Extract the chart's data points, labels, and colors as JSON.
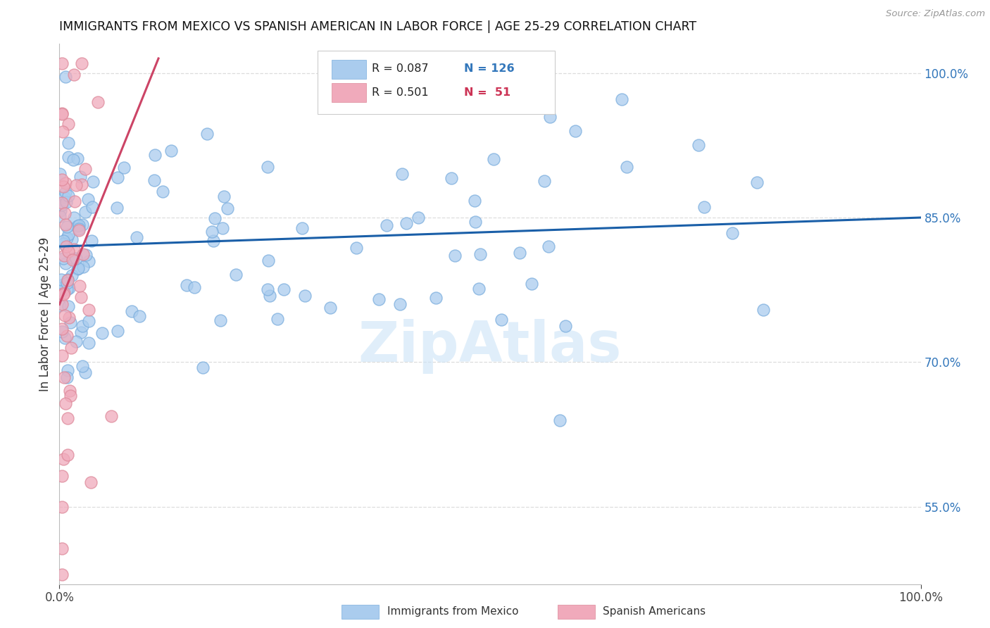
{
  "title": "IMMIGRANTS FROM MEXICO VS SPANISH AMERICAN IN LABOR FORCE | AGE 25-29 CORRELATION CHART",
  "source": "Source: ZipAtlas.com",
  "ylabel": "In Labor Force | Age 25-29",
  "xlim": [
    0.0,
    1.0
  ],
  "ylim": [
    0.47,
    1.03
  ],
  "right_ytick_labels": [
    "55.0%",
    "70.0%",
    "85.0%",
    "100.0%"
  ],
  "right_ytick_positions": [
    0.55,
    0.7,
    0.85,
    1.0
  ],
  "blue_color": "#aaccee",
  "blue_edge_color": "#7aaddd",
  "pink_color": "#f0aabb",
  "pink_edge_color": "#dd8899",
  "blue_line_color": "#1a5fa8",
  "pink_line_color": "#cc4466",
  "legend_blue_color": "#3377bb",
  "legend_pink_color": "#cc3355",
  "R_blue": 0.087,
  "N_blue": 126,
  "R_pink": 0.501,
  "N_pink": 51,
  "blue_trend_x0": 0.0,
  "blue_trend_y0": 0.82,
  "blue_trend_x1": 1.0,
  "blue_trend_y1": 0.85,
  "pink_trend_x0": 0.0,
  "pink_trend_y0": 0.76,
  "pink_trend_x1": 0.115,
  "pink_trend_y1": 1.015,
  "legend_label_blue": "Immigrants from Mexico",
  "legend_label_pink": "Spanish Americans",
  "watermark_color": "#cce4f7",
  "grid_color": "#dddddd"
}
